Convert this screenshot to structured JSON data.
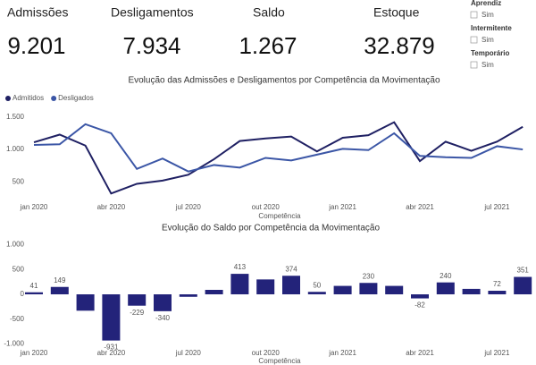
{
  "kpis": [
    {
      "label": "Admissões",
      "value": "9.201"
    },
    {
      "label": "Desligamentos",
      "value": "7.934"
    },
    {
      "label": "Saldo",
      "value": "1.267"
    },
    {
      "label": "Estoque",
      "value": "32.879"
    }
  ],
  "slicers": [
    {
      "title": "Aprendiz",
      "option": "Sim"
    },
    {
      "title": "Intermitente",
      "option": "Sim"
    },
    {
      "title": "Temporário",
      "option": "Sim"
    }
  ],
  "chart_data": [
    {
      "type": "line",
      "title": "Evolução das Admissões e Desligamentos por Competência da Movimentação",
      "x_label": "Competência",
      "categories": [
        "jan 2020",
        null,
        null,
        "abr 2020",
        null,
        null,
        "jul 2020",
        null,
        null,
        "out 2020",
        null,
        null,
        "jan 2021",
        null,
        null,
        "abr 2021",
        null,
        null,
        "jul 2021",
        null
      ],
      "series": [
        {
          "name": "Admitidos",
          "color": "#1f2063",
          "values": [
            1110,
            1229,
            1060,
            320,
            470,
            520,
            610,
            850,
            1130,
            1170,
            1200,
            970,
            1180,
            1220,
            1420,
            820,
            1120,
            980,
            1120,
            1350
          ]
        },
        {
          "name": "Desligados",
          "color": "#3b56a6",
          "values": [
            1070,
            1080,
            1390,
            1250,
            700,
            860,
            660,
            760,
            720,
            870,
            830,
            920,
            1010,
            990,
            1250,
            900,
            880,
            870,
            1050,
            1000
          ]
        }
      ],
      "ylim": [
        200,
        1650
      ],
      "yticks": [
        500,
        {
          "value": 1000,
          "label": "1.000"
        },
        {
          "value": 1500,
          "label": "1.500"
        }
      ],
      "grid": false,
      "legend": "top-left"
    },
    {
      "type": "bar",
      "title": "Evolução do Saldo por Competência da Movimentação",
      "x_label": "Competência",
      "categories": [
        "jan 2020",
        null,
        null,
        "abr 2020",
        null,
        null,
        "jul 2020",
        null,
        null,
        "out 2020",
        null,
        null,
        "jan 2021",
        null,
        null,
        "abr 2021",
        null,
        null,
        "jul 2021",
        null
      ],
      "values": [
        41,
        149,
        -330,
        -931,
        -229,
        -340,
        -50,
        90,
        413,
        300,
        374,
        50,
        170,
        230,
        170,
        -82,
        240,
        110,
        72,
        351
      ],
      "value_labels": [
        "41",
        "149",
        null,
        "-931",
        "-229",
        "-340",
        null,
        null,
        "413",
        null,
        "374",
        "50",
        null,
        "230",
        null,
        "-82",
        "240",
        null,
        "72",
        "351"
      ],
      "color": "#23237a",
      "ylim": [
        -1100,
        1100
      ],
      "yticks": [
        {
          "value": -1000,
          "label": "-1.000"
        },
        -500,
        0,
        500,
        {
          "value": 1000,
          "label": "1.000"
        }
      ],
      "grid": false
    }
  ]
}
